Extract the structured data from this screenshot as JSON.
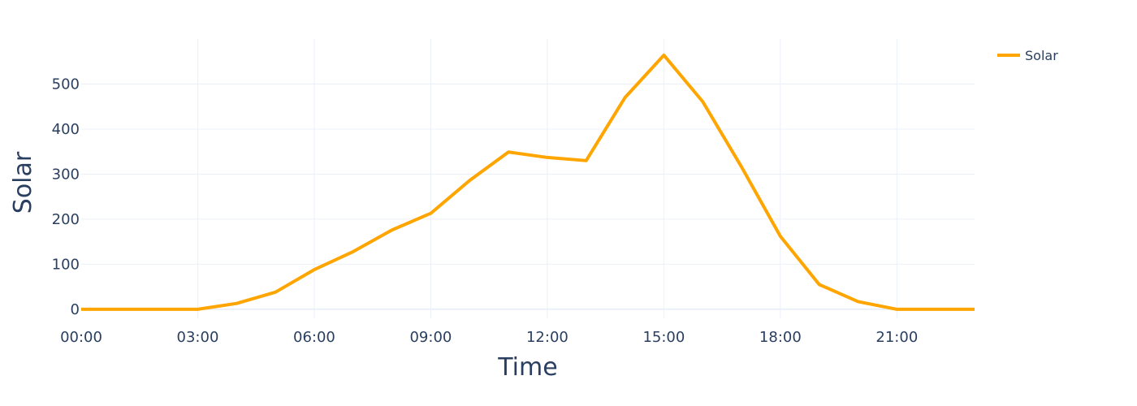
{
  "chart_data": {
    "type": "line",
    "title": "",
    "xlabel": "Time",
    "ylabel": "Solar",
    "x": [
      "00:00",
      "01:00",
      "02:00",
      "03:00",
      "04:00",
      "05:00",
      "06:00",
      "07:00",
      "08:00",
      "09:00",
      "10:00",
      "11:00",
      "12:00",
      "13:00",
      "14:00",
      "15:00",
      "16:00",
      "17:00",
      "18:00",
      "19:00",
      "20:00",
      "21:00",
      "22:00",
      "23:00"
    ],
    "x_tick_labels": [
      "00:00",
      "03:00",
      "06:00",
      "09:00",
      "12:00",
      "15:00",
      "18:00",
      "21:00"
    ],
    "y_ticks": [
      0,
      100,
      200,
      300,
      400,
      500
    ],
    "ylim": [
      -20,
      600
    ],
    "grid": true,
    "legend_position": "top-right",
    "series": [
      {
        "name": "Solar",
        "color": "#FFA500",
        "values": [
          0,
          0,
          0,
          0,
          13,
          38,
          88,
          128,
          176,
          213,
          286,
          349,
          337,
          330,
          470,
          564,
          461,
          316,
          162,
          55,
          17,
          0,
          0,
          0
        ]
      }
    ]
  }
}
